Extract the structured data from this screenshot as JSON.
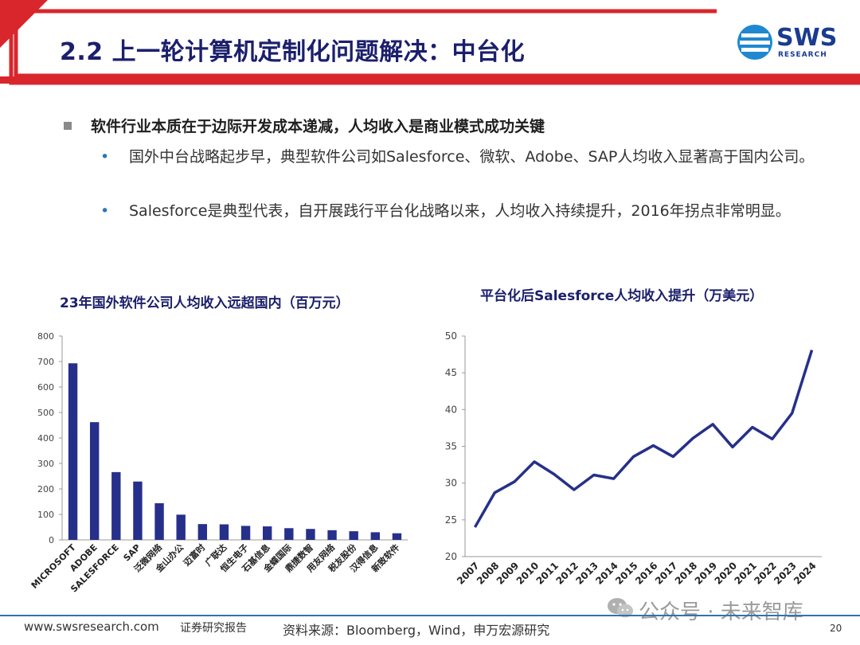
{
  "slide": {
    "title": "2.2 上一轮计算机定制化问题解决：中台化",
    "logo": {
      "name": "SWS",
      "sub": "RESEARCH"
    },
    "bullet_main": "软件行业本质在于边际开发成本递减，人均收入是商业模式成功关键",
    "sub_bullets": [
      "国外中台战略起步早，典型软件公司如Salesforce、微软、Adobe、SAP人均收入显著高于国内公司。",
      "Salesforce是典型代表，自开展践行平台化战略以来，人均收入持续提升，2016年拐点非常明显。"
    ],
    "colors": {
      "title": "#1b1f6b",
      "bar": "#26308a",
      "line": "#26308a",
      "accent_red": "#d9262c",
      "footer_line": "#2e74b5"
    }
  },
  "footer": {
    "website": "www.swsresearch.com",
    "label": "证券研究报告",
    "source": "资料来源：Bloomberg，Wind，申万宏源研究",
    "page": "20",
    "watermark": "公众号 · 未来智库"
  },
  "chart_data": [
    {
      "type": "bar",
      "title": "23年国外软件公司人均收入远超国内（百万元）",
      "categories": [
        "MICROSOFT",
        "ADOBE",
        "SALESFORCE",
        "SAP",
        "泛微网络",
        "金山办公",
        "迈富时",
        "广联达",
        "恒生电子",
        "石基信息",
        "金蝶国际",
        "鼎捷数智",
        "用友网络",
        "税友股份",
        "汉得信息",
        "新致软件"
      ],
      "values": [
        693,
        462,
        266,
        229,
        144,
        99,
        62,
        61,
        55,
        53,
        46,
        43,
        38,
        34,
        30,
        26
      ],
      "ylim": [
        0,
        800
      ],
      "yticks": [
        0,
        100,
        200,
        300,
        400,
        500,
        600,
        700,
        800
      ],
      "grid": false
    },
    {
      "type": "line",
      "title": "平台化后Salesforce人均收入提升（万美元）",
      "x": [
        "2007",
        "2008",
        "2009",
        "2010",
        "2011",
        "2012",
        "2013",
        "2014",
        "2015",
        "2016",
        "2017",
        "2018",
        "2019",
        "2020",
        "2021",
        "2022",
        "2023",
        "2024"
      ],
      "values": [
        24.0,
        28.7,
        30.2,
        32.9,
        31.2,
        29.1,
        31.1,
        30.6,
        33.6,
        35.1,
        33.6,
        36.1,
        38.0,
        34.9,
        37.6,
        36.0,
        39.5,
        48.1
      ],
      "ylim": [
        20,
        50
      ],
      "yticks": [
        20,
        25,
        30,
        35,
        40,
        45,
        50
      ],
      "grid": false
    }
  ]
}
